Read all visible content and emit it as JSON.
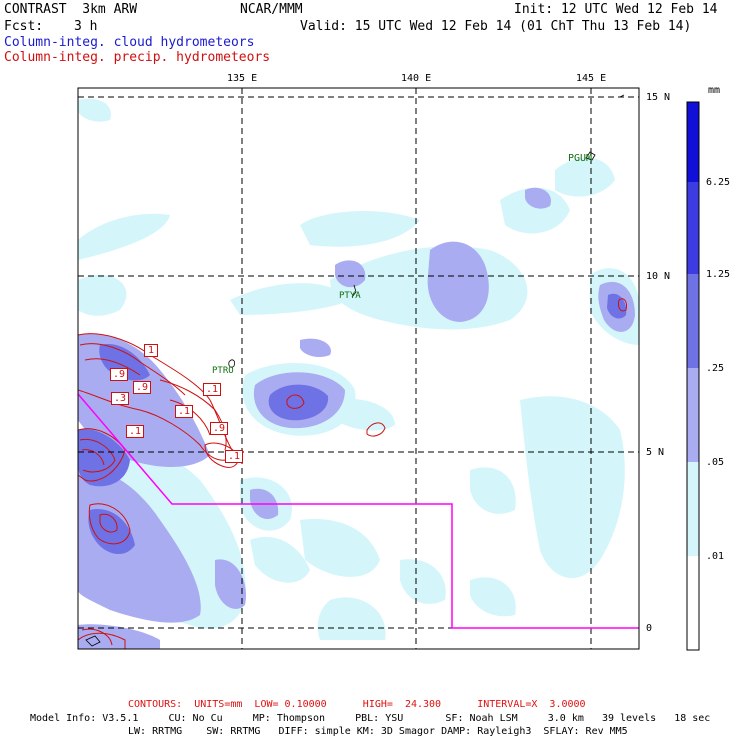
{
  "header": {
    "model": "CONTRAST  3km ARW",
    "org": "NCAR/MMM",
    "init": "Init: 12 UTC Wed 12 Feb 14",
    "fcst_label": "Fcst:",
    "fcst_value": "3 h",
    "valid": "Valid: 15 UTC Wed 12 Feb 14 (01 ChT Thu 13 Feb 14)",
    "legend_cloud": "Column-integ. cloud hydrometeors",
    "legend_precip": "Column-integ. precip. hydrometeors"
  },
  "axes": {
    "lon_labels": [
      "135 E",
      "140 E",
      "145 E"
    ],
    "lat_labels": [
      "15 N",
      "10 N",
      "5 N",
      "0"
    ]
  },
  "stations": [
    "PGUM",
    "PTYA",
    "PTRO"
  ],
  "contour_labels": [
    "1",
    ".9",
    ".9",
    ".3",
    ".1",
    ".1",
    ".1",
    ".9",
    ".1"
  ],
  "colorbar": {
    "unit": "mm",
    "levels": [
      "6.25",
      "1.25",
      ".25",
      ".05",
      ".01"
    ],
    "colors": [
      "#1010d8",
      "#3c3ce0",
      "#6f72e4",
      "#a9acf0",
      "#d4f6fb",
      "#ffffff"
    ]
  },
  "colors": {
    "cloud_fill_light": "#d4f6fb",
    "cloud_fill_mid": "#a9acf0",
    "cloud_fill_dark": "#6f72e4",
    "precip_contour": "#d01010",
    "boundary": "#ff00ff",
    "station": "#107010"
  },
  "footer": {
    "contours": "CONTOURS:  UNITS=mm  LOW= 0.10000      HIGH=  24.300      INTERVAL=X  3.0000",
    "model_info_1": "Model Info: V3.5.1     CU: No Cu     MP: Thompson     PBL: YSU       SF: Noah LSM     3.0 km   39 levels   18 sec",
    "model_info_2": "LW: RRTMG    SW: RRTMG   DIFF: simple KM: 3D Smagor DAMP: Rayleigh3  SFLAY: Rev MM5"
  }
}
